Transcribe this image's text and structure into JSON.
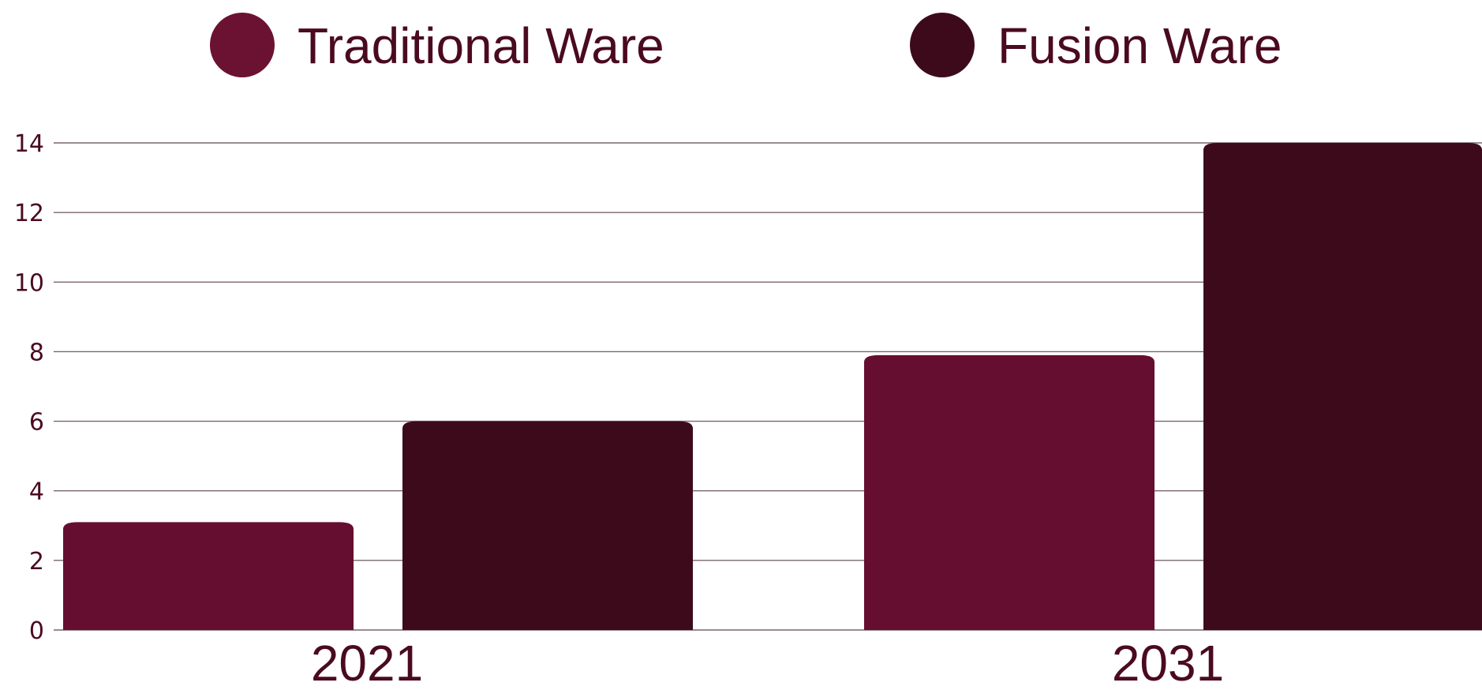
{
  "chart_data": {
    "type": "bar",
    "title": "",
    "xlabel": "",
    "ylabel": "",
    "categories": [
      "2021",
      "2031"
    ],
    "series": [
      {
        "name": "Traditional Ware",
        "values": [
          3.1,
          7.9
        ],
        "color": "#660e2f"
      },
      {
        "name": "Fusion Ware",
        "values": [
          6.0,
          14.0
        ],
        "color": "#3d0a1c"
      }
    ],
    "ylim": [
      0,
      14
    ],
    "yticks": [
      "0",
      "2",
      "4",
      "6",
      "8",
      "10",
      "12",
      "14"
    ],
    "grid": true,
    "legend_position": "top",
    "colors": {
      "text": "#4a0a20",
      "grid": "#7a6470",
      "legend_dot_1": "#6b1232",
      "legend_dot_2": "#3d0a1c"
    }
  }
}
